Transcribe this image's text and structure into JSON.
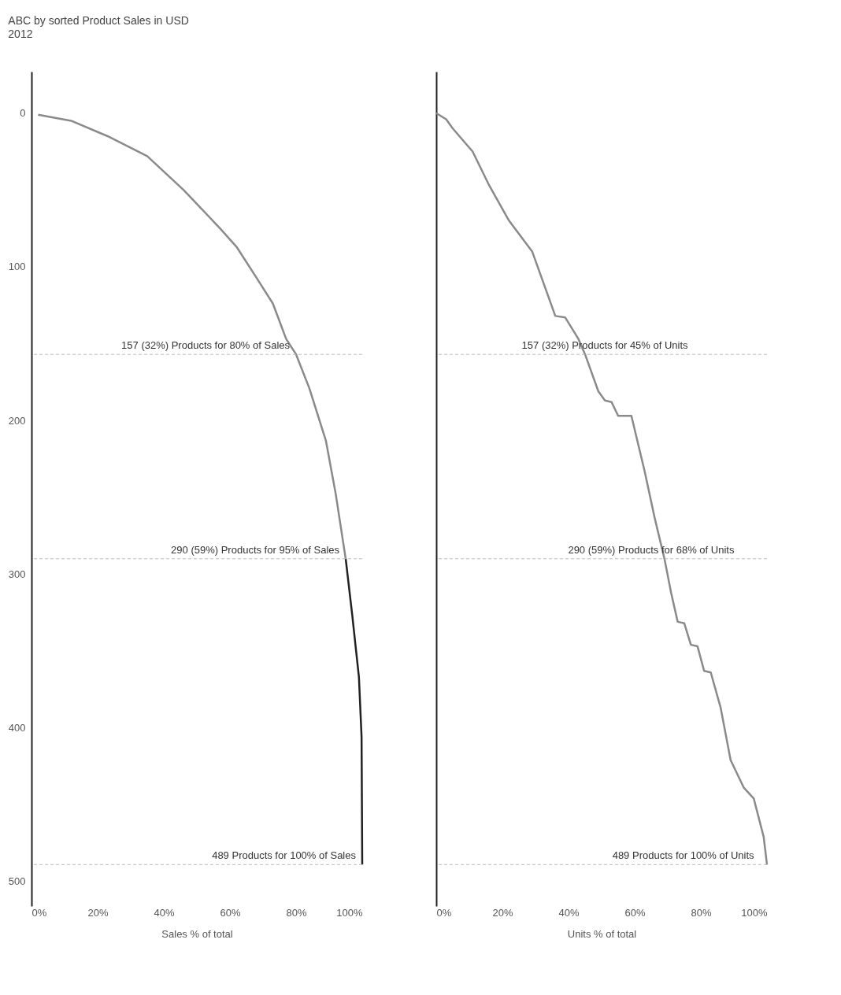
{
  "chart_data": [
    {
      "type": "line",
      "title": "ABC by sorted Product Sales in USD",
      "subtitle": "2012",
      "xlabel": "Sales % of total",
      "line_style": "solid",
      "marker": "none",
      "grid": false,
      "xlim": [
        0,
        100
      ],
      "ylim": [
        516,
        -27
      ],
      "xticks": [
        {
          "value": 0,
          "label": "0%"
        },
        {
          "value": 20,
          "label": "20%"
        },
        {
          "value": 40,
          "label": "40%"
        },
        {
          "value": 60,
          "label": "60%"
        },
        {
          "value": 80,
          "label": "80%"
        },
        {
          "value": 100,
          "label": "100%"
        }
      ],
      "yticks": [
        0,
        100,
        200,
        300,
        400,
        500
      ],
      "series": [
        {
          "color": "#8a8a8a",
          "x": [
            2,
            12,
            23,
            35,
            46,
            57,
            62,
            68,
            73,
            77,
            80,
            84,
            89,
            92,
            95
          ],
          "values": [
            1,
            5,
            15,
            28,
            50,
            75,
            87,
            107,
            124,
            147,
            157,
            179,
            213,
            248,
            290
          ]
        },
        {
          "color": "#222222",
          "x": [
            95,
            97,
            99,
            99.8,
            100
          ],
          "values": [
            290,
            327,
            367,
            406,
            489
          ]
        }
      ],
      "ref_lines": [
        {
          "axis": "y",
          "value": 157,
          "color": "#bbbbbb",
          "line_style": "dashed"
        },
        {
          "axis": "y",
          "value": 290,
          "color": "#bbbbbb",
          "line_style": "dashed"
        },
        {
          "axis": "y",
          "value": 489,
          "color": "#bbbbbb",
          "line_style": "dashed"
        }
      ],
      "annotations": [
        {
          "text": "157 (32%) Products for 80% of Sales",
          "x": 80,
          "y": 157
        },
        {
          "text": "290 (59%) Products for 95% of Sales",
          "x": 95,
          "y": 290
        },
        {
          "text": "489 Products for 100% of Sales",
          "x": 100,
          "y": 489
        }
      ]
    },
    {
      "type": "line",
      "xlabel": "Units % of total",
      "line_style": "solid",
      "marker": "none",
      "grid": false,
      "tick_labels": "x",
      "xlim": [
        0,
        100
      ],
      "ylim": [
        516,
        -27
      ],
      "xticks": [
        {
          "value": 0,
          "label": "0%"
        },
        {
          "value": 20,
          "label": "20%"
        },
        {
          "value": 40,
          "label": "40%"
        },
        {
          "value": 60,
          "label": "60%"
        },
        {
          "value": 80,
          "label": "80%"
        },
        {
          "value": 100,
          "label": "100%"
        }
      ],
      "yticks": [
        0,
        100,
        200,
        300,
        400,
        500
      ],
      "series": [
        {
          "color": "#8a8a8a",
          "x": [
            0,
            3,
            5,
            11,
            16,
            22,
            29,
            36,
            39,
            43,
            45,
            49,
            51,
            53,
            55,
            59,
            63,
            66,
            69,
            71,
            73,
            75,
            77,
            79,
            81,
            83,
            86,
            89,
            93,
            96,
            99,
            100
          ],
          "values": [
            0,
            4,
            10,
            25,
            47,
            70,
            90,
            132,
            133,
            147,
            157,
            181,
            187,
            188,
            197,
            197,
            233,
            263,
            290,
            312,
            331,
            332,
            346,
            347,
            363,
            364,
            387,
            421,
            439,
            446,
            471,
            489
          ]
        }
      ],
      "ref_lines": [
        {
          "axis": "y",
          "value": 157,
          "color": "#bbbbbb",
          "line_style": "dashed"
        },
        {
          "axis": "y",
          "value": 290,
          "color": "#bbbbbb",
          "line_style": "dashed"
        },
        {
          "axis": "y",
          "value": 489,
          "color": "#bbbbbb",
          "line_style": "dashed"
        }
      ],
      "annotations": [
        {
          "text": "157 (32%) Products for 45% of Units",
          "x": 78,
          "y": 157
        },
        {
          "text": "290 (59%) Products for 68% of Units",
          "x": 92,
          "y": 290
        },
        {
          "text": "489 Products for 100% of Units",
          "x": 98,
          "y": 489
        }
      ]
    }
  ]
}
